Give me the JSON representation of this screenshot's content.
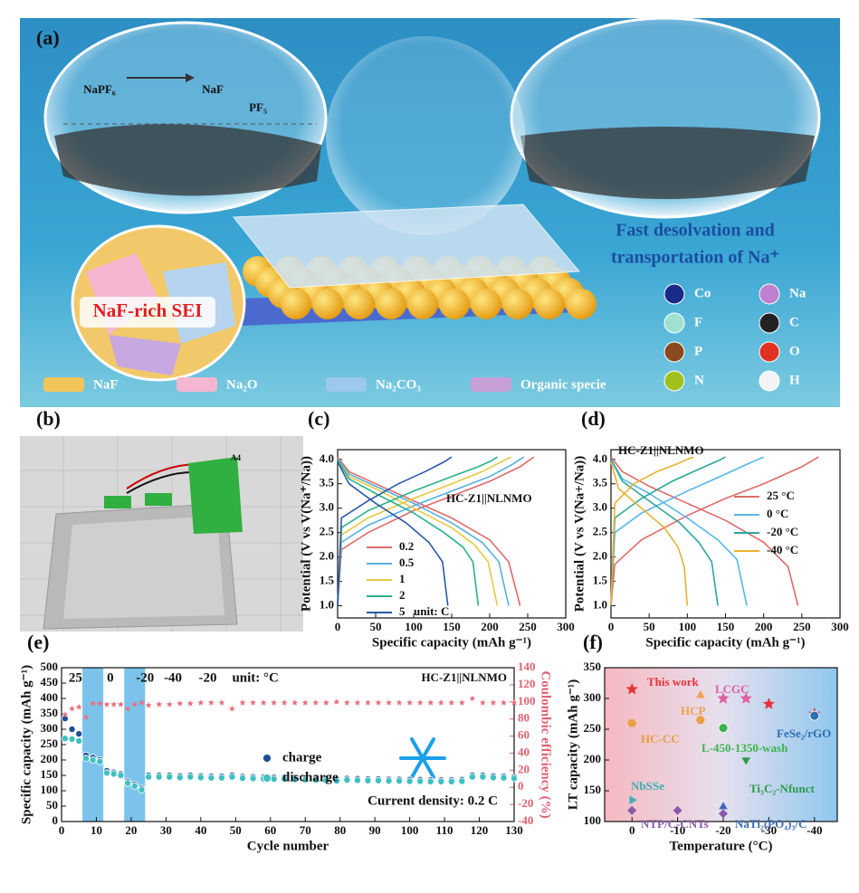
{
  "panel_a": {
    "label": "(a)",
    "reaction": {
      "reactant": "NaPF₆",
      "products": [
        "NaF",
        "PF₅"
      ]
    },
    "headline": [
      "Fast desolvation and",
      "transportation of Na⁺"
    ],
    "sei_label": "NaF-rich SEI",
    "components": [
      "NaF",
      "Na₂O",
      "Na₂CO₃",
      "Organic specie"
    ],
    "elements": [
      "Co",
      "Na",
      "F",
      "C",
      "P",
      "O",
      "N",
      "H"
    ]
  },
  "panel_b": {
    "label": "(b)",
    "sticker": "A4"
  },
  "chart_data": [
    {
      "type": "line",
      "label": "(c)",
      "annotation": "HC-Z1||NLNMO",
      "legend_note": "unit: C",
      "legend": "lower left",
      "x_label": "Specific capacity (mAh g⁻¹)",
      "y_label": "Potential (V vs V(Na⁺/Na))",
      "xlim": [
        0,
        300
      ],
      "xticks": [
        0,
        50,
        100,
        150,
        200,
        250,
        300
      ],
      "ylim": [
        0.75,
        4.2
      ],
      "yticks": [
        {
          "value": 1,
          "label": "1.0"
        },
        1.5,
        {
          "value": 2,
          "label": "2.0"
        },
        2.5,
        {
          "value": 3,
          "label": "3.0"
        },
        3.5,
        {
          "value": 4,
          "label": "4.0"
        }
      ],
      "series": [
        {
          "name": "0.2",
          "color": "#e06a6a",
          "curves": [
            {
              "x": [
                0,
                15,
                50,
                100,
                150,
                200,
                225,
                240
              ],
              "values": [
                4.05,
                3.75,
                3.5,
                3.15,
                2.8,
                2.35,
                1.9,
                1.0
              ]
            },
            {
              "x": [
                0,
                5,
                40,
                100,
                150,
                200,
                240,
                258
              ],
              "values": [
                1.0,
                2.15,
                2.5,
                2.95,
                3.25,
                3.55,
                3.85,
                4.05
              ]
            }
          ]
        },
        {
          "name": "0.5",
          "color": "#55b0e0",
          "curves": [
            {
              "x": [
                0,
                15,
                50,
                100,
                150,
                190,
                212,
                225
              ],
              "values": [
                4.02,
                3.7,
                3.45,
                3.1,
                2.7,
                2.3,
                1.9,
                1.0
              ]
            },
            {
              "x": [
                0,
                5,
                40,
                100,
                150,
                200,
                230,
                245
              ],
              "values": [
                1.0,
                2.3,
                2.65,
                3.05,
                3.35,
                3.65,
                3.9,
                4.05
              ]
            }
          ]
        },
        {
          "name": "1",
          "color": "#e8c840",
          "curves": [
            {
              "x": [
                0,
                15,
                50,
                100,
                150,
                180,
                198,
                210
              ],
              "values": [
                4.0,
                3.65,
                3.4,
                3.0,
                2.6,
                2.25,
                1.9,
                1.0
              ]
            },
            {
              "x": [
                0,
                5,
                40,
                100,
                150,
                190,
                215,
                228
              ],
              "values": [
                1.0,
                2.45,
                2.8,
                3.2,
                3.5,
                3.75,
                3.95,
                4.05
              ]
            }
          ]
        },
        {
          "name": "2",
          "color": "#2ab08a",
          "curves": [
            {
              "x": [
                0,
                15,
                50,
                100,
                140,
                165,
                178,
                185
              ],
              "values": [
                4.0,
                3.6,
                3.3,
                2.9,
                2.5,
                2.2,
                1.9,
                1.0
              ]
            },
            {
              "x": [
                0,
                5,
                40,
                100,
                150,
                185,
                202,
                210
              ],
              "values": [
                1.0,
                2.6,
                2.95,
                3.35,
                3.65,
                3.85,
                3.97,
                4.05
              ]
            }
          ]
        },
        {
          "name": "5",
          "color": "#2a5aa8",
          "curves": [
            {
              "x": [
                0,
                15,
                50,
                90,
                120,
                138,
                145
              ],
              "values": [
                3.95,
                3.5,
                3.1,
                2.7,
                2.3,
                1.9,
                1.0
              ]
            },
            {
              "x": [
                0,
                5,
                40,
                80,
                115,
                140,
                150
              ],
              "values": [
                1.0,
                2.8,
                3.15,
                3.5,
                3.75,
                3.95,
                4.05
              ]
            }
          ]
        }
      ]
    },
    {
      "type": "line",
      "label": "(d)",
      "annotation": "HC-Z1||NLNMO",
      "legend": "right",
      "x_label": "Specific capacity (mAh g⁻¹)",
      "y_label": "Potential (V vs V(Na+/Na))",
      "xlim": [
        0,
        300
      ],
      "xticks": [
        0,
        50,
        100,
        150,
        200,
        250,
        300
      ],
      "ylim": [
        0.75,
        4.2
      ],
      "yticks": [
        {
          "value": 1,
          "label": "1.0"
        },
        1.5,
        {
          "value": 2,
          "label": "2.0"
        },
        2.5,
        {
          "value": 3,
          "label": "3.0"
        },
        3.5,
        {
          "value": 4,
          "label": "4.0"
        }
      ],
      "series": [
        {
          "name": "25 °C",
          "color": "#e06a6a",
          "curves": [
            {
              "x": [
                0,
                15,
                50,
                100,
                150,
                200,
                232,
                245
              ],
              "values": [
                4.05,
                3.75,
                3.45,
                3.1,
                2.75,
                2.3,
                1.8,
                1.0
              ]
            },
            {
              "x": [
                0,
                5,
                40,
                100,
                150,
                200,
                250,
                272
              ],
              "values": [
                1.0,
                1.85,
                2.35,
                2.85,
                3.2,
                3.5,
                3.85,
                4.05
              ]
            }
          ]
        },
        {
          "name": "0 °C",
          "color": "#55b8e8",
          "curves": [
            {
              "x": [
                0,
                15,
                50,
                100,
                140,
                165,
                178
              ],
              "values": [
                4.0,
                3.6,
                3.3,
                2.8,
                2.35,
                1.95,
                1.0
              ]
            },
            {
              "x": [
                0,
                5,
                40,
                100,
                150,
                185,
                200
              ],
              "values": [
                1.0,
                2.5,
                2.9,
                3.35,
                3.7,
                3.95,
                4.05
              ]
            }
          ]
        },
        {
          "name": "-20 °C",
          "color": "#2aa89a",
          "curves": [
            {
              "x": [
                0,
                15,
                50,
                90,
                115,
                132,
                140
              ],
              "values": [
                4.0,
                3.55,
                3.15,
                2.7,
                2.3,
                1.9,
                1.0
              ]
            },
            {
              "x": [
                0,
                5,
                40,
                80,
                115,
                140,
                150
              ],
              "values": [
                1.0,
                2.8,
                3.2,
                3.55,
                3.8,
                3.97,
                4.05
              ]
            }
          ]
        },
        {
          "name": "-40 °C",
          "color": "#e8b030",
          "curves": [
            {
              "x": [
                0,
                10,
                40,
                70,
                88,
                96,
                100
              ],
              "values": [
                3.95,
                3.4,
                3.0,
                2.6,
                2.2,
                1.8,
                1.0
              ]
            },
            {
              "x": [
                0,
                5,
                30,
                60,
                85,
                100,
                108
              ],
              "values": [
                1.0,
                3.1,
                3.5,
                3.75,
                3.9,
                4.0,
                4.05
              ]
            }
          ]
        }
      ]
    },
    {
      "type": "scatter",
      "label": "(e)",
      "annotation": "HC-Z1||NLNMO",
      "note": "Current density: 0.2 C",
      "legend": "center",
      "temperature_labels": [
        "25",
        "0",
        "-20",
        "-40",
        "-20"
      ],
      "unit_note": "unit: °C",
      "bands": [
        [
          6,
          12
        ],
        [
          18,
          24
        ]
      ],
      "x_label": "Cycle number",
      "y_label": "Specific capacity (mAh g⁻¹)",
      "y2_label": "Coulombic efficiency (%)",
      "xlim": [
        0,
        130
      ],
      "xticks": [
        0,
        10,
        20,
        30,
        40,
        50,
        60,
        70,
        80,
        90,
        100,
        110,
        120,
        130
      ],
      "ylim": [
        0,
        500
      ],
      "yticks": [
        0,
        50,
        100,
        150,
        200,
        250,
        300,
        350,
        400,
        450,
        500
      ],
      "y2lim": [
        -40,
        140
      ],
      "y2ticks": [
        -40,
        -20,
        0,
        20,
        40,
        60,
        80,
        100,
        120,
        140
      ],
      "x": [
        1,
        3,
        5,
        7,
        9,
        11,
        13,
        15,
        17,
        19,
        21,
        23,
        25,
        28,
        31,
        34,
        37,
        40,
        43,
        46,
        49,
        52,
        55,
        58,
        61,
        64,
        67,
        70,
        73,
        76,
        79,
        82,
        85,
        88,
        91,
        94,
        97,
        100,
        103,
        106,
        109,
        112,
        115,
        118,
        121,
        124,
        127,
        130
      ],
      "series": [
        {
          "name": "charge",
          "color": "#1f4e99",
          "marker": "circle",
          "values": [
            335,
            300,
            285,
            215,
            208,
            200,
            165,
            160,
            155,
            130,
            120,
            108,
            150,
            150,
            150,
            148,
            150,
            148,
            147,
            147,
            150,
            146,
            145,
            144,
            143,
            143,
            142,
            141,
            140,
            139,
            137,
            140,
            139,
            138,
            138,
            137,
            137,
            136,
            136,
            135,
            135,
            135,
            136,
            150,
            150,
            148,
            147,
            145
          ]
        },
        {
          "name": "discharge",
          "color": "#3fc0c0",
          "marker": "circle",
          "values": [
            270,
            268,
            262,
            205,
            200,
            195,
            158,
            155,
            150,
            125,
            115,
            103,
            145,
            145,
            145,
            143,
            145,
            143,
            142,
            142,
            145,
            141,
            140,
            139,
            138,
            138,
            137,
            136,
            135,
            134,
            132,
            135,
            134,
            133,
            133,
            132,
            132,
            131,
            131,
            130,
            130,
            130,
            131,
            145,
            145,
            143,
            142,
            140
          ]
        },
        {
          "color": "#e87080",
          "marker": "star",
          "axis": "y2",
          "values": [
            85,
            92,
            94,
            82,
            98,
            98,
            97,
            97,
            97,
            92,
            97,
            99,
            96,
            97,
            97,
            98,
            98,
            99,
            99,
            99,
            92,
            99,
            99,
            99,
            99,
            99,
            99,
            99,
            99,
            99,
            100,
            99,
            99,
            99,
            99,
            99,
            99,
            99,
            99,
            99,
            99,
            99,
            99,
            104,
            99,
            99,
            99,
            99
          ]
        }
      ]
    },
    {
      "type": "scatter",
      "label": "(f)",
      "point_labels": true,
      "x_label": "Temperature (°C)",
      "y_label": "LT capacity (mAh g⁻¹)",
      "xlim": [
        6,
        -45
      ],
      "xticks": [
        0,
        -10,
        -20,
        -30,
        -40
      ],
      "ylim": [
        100,
        350
      ],
      "yticks": [
        100,
        150,
        200,
        250,
        300,
        350
      ],
      "series": [
        {
          "name": "This work",
          "color": "#e8333a",
          "marker": "star",
          "x": [
            0,
            -30,
            -40
          ],
          "values": [
            315,
            291,
            275
          ]
        },
        {
          "name": "LCGC",
          "color": "#e060a0",
          "marker": "star",
          "x": [
            -20,
            -25
          ],
          "values": [
            300,
            300
          ]
        },
        {
          "name": "HCP",
          "color": "#f0a050",
          "marker": "triangle",
          "x": [
            -15
          ],
          "values": [
            305
          ]
        },
        {
          "name": "HC-CC",
          "color": "#e8a040",
          "marker": "hexagon",
          "x": [
            0,
            -15
          ],
          "values": [
            260,
            265
          ]
        },
        {
          "name": "L-450-1350-wash",
          "color": "#3cb44b",
          "marker": "circle",
          "x": [
            -20
          ],
          "values": [
            252
          ]
        },
        {
          "name": "FeSe₂/rGO",
          "color": "#2a6fb0",
          "marker": "circle",
          "x": [
            -40
          ],
          "values": [
            272
          ]
        },
        {
          "name": "Ti₃C₂-Nfunct",
          "color": "#2e9a4e",
          "marker": "triangle-down",
          "x": [
            -25
          ],
          "values": [
            200
          ]
        },
        {
          "name": "NbSSe",
          "color": "#3bb0b0",
          "marker": "triangle-right",
          "x": [
            0
          ],
          "values": [
            135
          ]
        },
        {
          "name": "NTP/C-CNTs",
          "color": "#8a5aa8",
          "marker": "diamond",
          "x": [
            0,
            -10,
            -20
          ],
          "values": [
            118,
            118,
            113
          ]
        },
        {
          "name": "NaTi₂(PO₄)₃/C",
          "color": "#3a6ab8",
          "marker": "triangle",
          "x": [
            -20
          ],
          "values": [
            124
          ]
        }
      ]
    }
  ]
}
